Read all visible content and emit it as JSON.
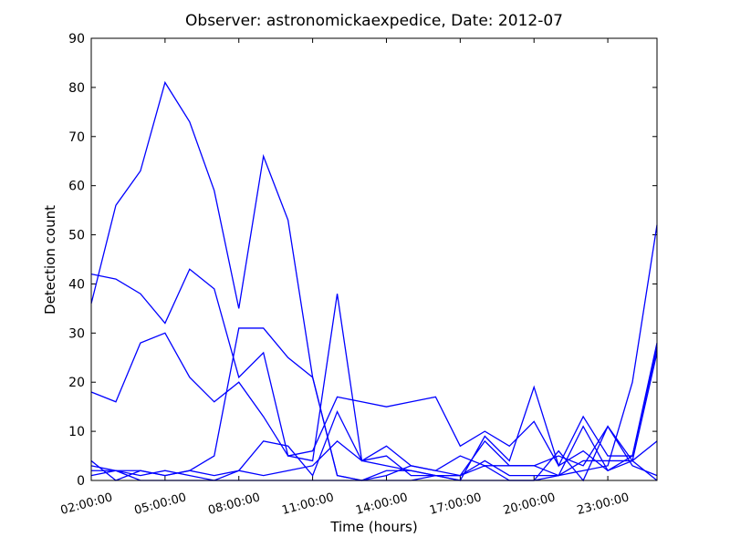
{
  "chart_data": {
    "type": "line",
    "title": "Observer: astronomickaexpedice, Date: 2012-07",
    "x_label": "Time (hours)",
    "y_label": "Detection count",
    "x": [
      2,
      3,
      4,
      5,
      6,
      7,
      8,
      9,
      10,
      11,
      12,
      13,
      14,
      15,
      16,
      17,
      18,
      19,
      20,
      21,
      22,
      23,
      24,
      25
    ],
    "xlim": [
      2,
      25
    ],
    "xticks": [
      {
        "value": 2,
        "label": "02:00:00"
      },
      {
        "value": 5,
        "label": "05:00:00"
      },
      {
        "value": 8,
        "label": "08:00:00"
      },
      {
        "value": 11,
        "label": "11:00:00"
      },
      {
        "value": 14,
        "label": "14:00:00"
      },
      {
        "value": 17,
        "label": "17:00:00"
      },
      {
        "value": 20,
        "label": "20:00:00"
      },
      {
        "value": 23,
        "label": "23:00:00"
      }
    ],
    "ylim": [
      0,
      90
    ],
    "yticks": [
      0,
      10,
      20,
      30,
      40,
      50,
      60,
      70,
      80,
      90
    ],
    "color": "#0000ff",
    "series": [
      {
        "values": [
          36,
          56,
          63,
          81,
          73,
          59,
          35,
          66,
          53,
          21,
          1,
          0,
          0,
          0,
          1,
          0,
          0,
          0,
          0,
          1,
          2,
          3,
          20,
          52
        ]
      },
      {
        "values": [
          42,
          41,
          38,
          32,
          43,
          39,
          21,
          26,
          5,
          6,
          17,
          16,
          15,
          16,
          17,
          7,
          10,
          7,
          12,
          3,
          6,
          2,
          5,
          28
        ]
      },
      {
        "values": [
          18,
          16,
          28,
          30,
          21,
          16,
          20,
          13,
          5,
          4,
          38,
          4,
          5,
          1,
          1,
          0,
          9,
          4,
          19,
          3,
          13,
          5,
          5,
          27
        ]
      },
      {
        "values": [
          4,
          0,
          2,
          1,
          2,
          5,
          31,
          31,
          25,
          21,
          1,
          0,
          2,
          2,
          1,
          1,
          3,
          0,
          0,
          6,
          0,
          11,
          4,
          8
        ]
      },
      {
        "values": [
          2,
          2,
          2,
          1,
          2,
          1,
          2,
          8,
          7,
          1,
          14,
          4,
          7,
          3,
          2,
          5,
          3,
          3,
          3,
          1,
          11,
          2,
          4,
          26
        ]
      },
      {
        "values": [
          3,
          2,
          1,
          2,
          1,
          0,
          2,
          1,
          2,
          3,
          8,
          4,
          3,
          2,
          1,
          1,
          8,
          3,
          3,
          5,
          3,
          11,
          3,
          1
        ]
      },
      {
        "values": [
          1,
          2,
          0,
          0,
          0,
          0,
          0,
          0,
          0,
          0,
          0,
          0,
          1,
          3,
          2,
          1,
          4,
          1,
          1,
          1,
          4,
          4,
          4,
          0
        ]
      }
    ]
  }
}
